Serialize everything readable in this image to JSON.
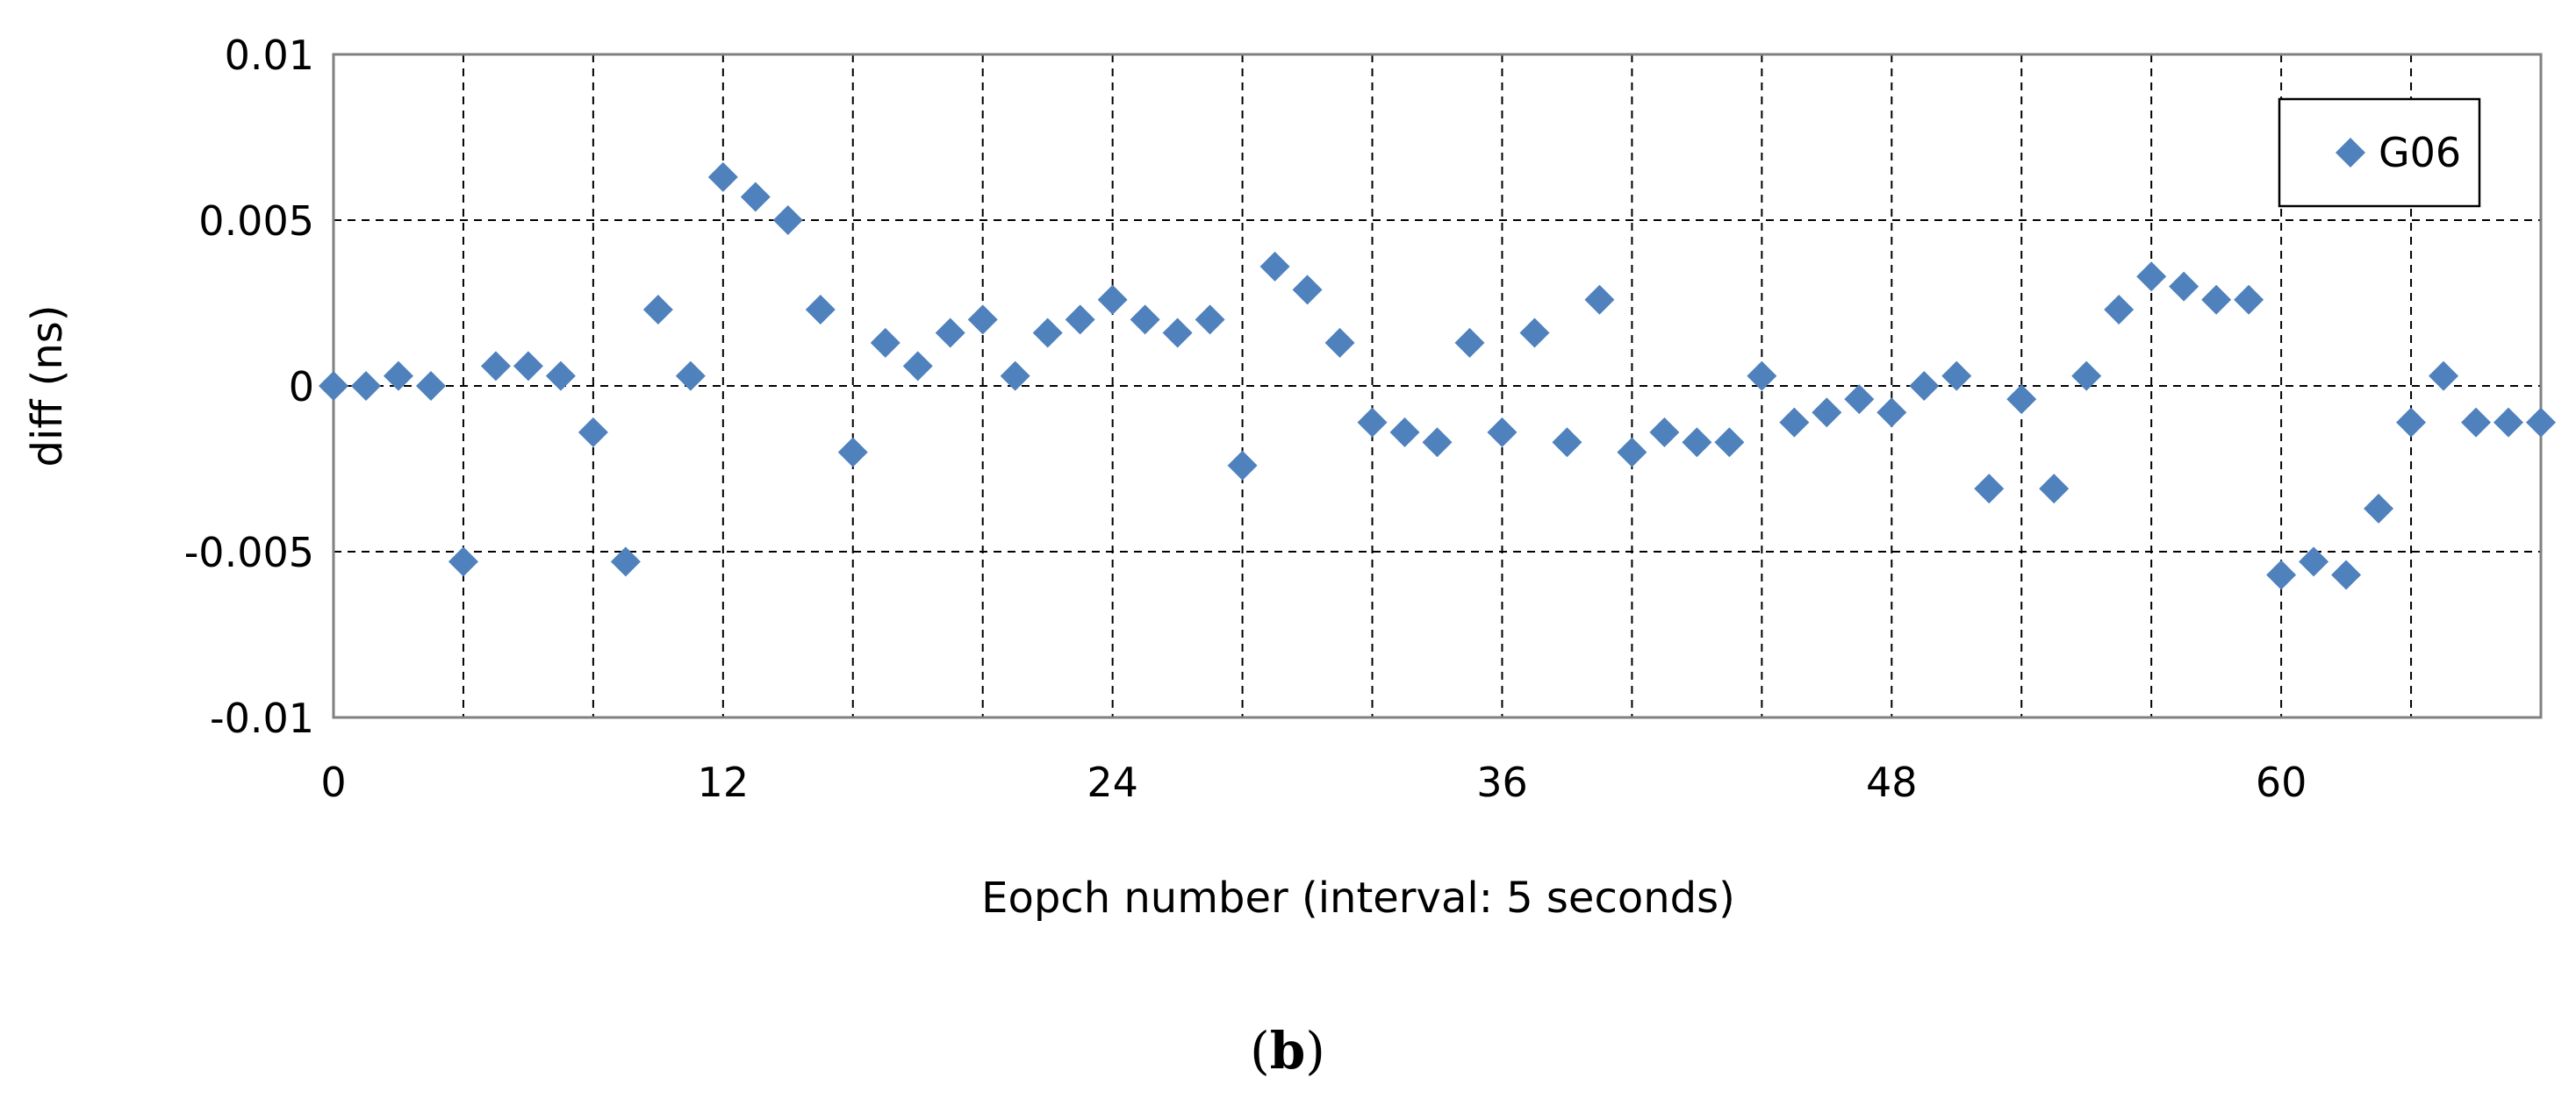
{
  "chart_data": {
    "type": "scatter",
    "title": "",
    "xlabel": "Eopch number (interval: 5 seconds)",
    "ylabel": "diff (ns)",
    "xlim": [
      0,
      68
    ],
    "ylim": [
      -0.01,
      0.01
    ],
    "x_ticks": [
      0,
      12,
      24,
      36,
      48,
      60
    ],
    "x_tick_labels": [
      "0",
      "12",
      "24",
      "36",
      "48",
      "60"
    ],
    "x_grid_step": 4,
    "y_ticks": [
      0.01,
      0.005,
      0,
      -0.005,
      -0.01
    ],
    "y_tick_labels": [
      "0.01",
      "0.005",
      "0",
      "-0.005",
      "-0.01"
    ],
    "grid": true,
    "grid_style": "dashed",
    "legend_position": "top-right",
    "marker": "diamond",
    "series": [
      {
        "name": "G06",
        "color": "#4F81BD",
        "x": [
          0,
          1,
          2,
          3,
          4,
          5,
          6,
          7,
          8,
          9,
          10,
          11,
          12,
          13,
          14,
          15,
          16,
          17,
          18,
          19,
          20,
          21,
          22,
          23,
          24,
          25,
          26,
          27,
          28,
          29,
          30,
          31,
          32,
          33,
          34,
          35,
          36,
          37,
          38,
          39,
          40,
          41,
          42,
          43,
          44,
          45,
          46,
          47,
          48,
          49,
          50,
          51,
          52,
          53,
          54,
          55,
          56,
          57,
          58,
          59,
          60,
          61,
          62,
          63,
          64,
          65,
          66,
          67,
          68
        ],
        "y": [
          0,
          0,
          0.0003,
          0,
          -0.0053,
          0.0006,
          0.0006,
          0.0003,
          -0.0014,
          -0.0053,
          0.0023,
          0.0003,
          0.0063,
          0.0057,
          0.005,
          0.0023,
          -0.002,
          0.0013,
          0.0006,
          0.0016,
          0.002,
          0.0003,
          0.0016,
          0.002,
          0.0026,
          0.002,
          0.0016,
          0.002,
          -0.0024,
          0.0036,
          0.0029,
          0.0013,
          -0.0011,
          -0.0014,
          -0.0017,
          0.0013,
          -0.0014,
          0.0016,
          -0.0017,
          0.0026,
          -0.002,
          -0.0014,
          -0.0017,
          -0.0017,
          0.0003,
          -0.0011,
          -0.0008,
          -0.0004,
          -0.0008,
          0,
          0.0003,
          -0.0031,
          -0.0004,
          -0.0031,
          0.0003,
          0.0023,
          0.0033,
          0.003,
          0.0026,
          0.0026,
          -0.0057,
          -0.0053,
          -0.0057,
          -0.0037,
          -0.0011,
          0.0003,
          -0.0011,
          -0.0011,
          -0.0011
        ]
      }
    ]
  },
  "caption": {
    "open": "(",
    "letter": "b",
    "close": ")"
  }
}
